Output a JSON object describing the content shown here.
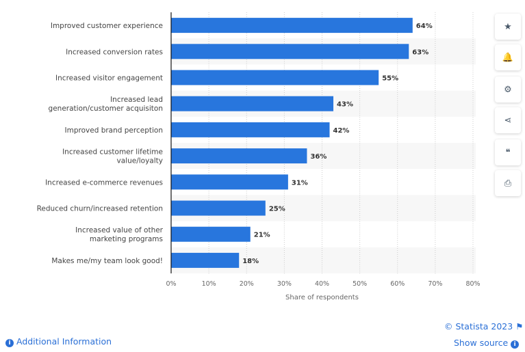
{
  "chart_data": {
    "type": "bar",
    "orientation": "horizontal",
    "categories": [
      "Improved customer experience",
      "Increased conversion rates",
      "Increased visitor engagement",
      "Increased lead generation/customer acquisiton",
      "Improved brand perception",
      "Increased customer lifetime value/loyalty",
      "Increased e-commerce revenues",
      "Reduced churn/increased retention",
      "Increased value of other marketing programs",
      "Makes me/my team look good!"
    ],
    "values": [
      64,
      63,
      55,
      43,
      42,
      36,
      31,
      25,
      21,
      18
    ],
    "data_labels": [
      "64%",
      "63%",
      "55%",
      "43%",
      "42%",
      "36%",
      "31%",
      "25%",
      "21%",
      "18%"
    ],
    "xlabel": "Share of respondents",
    "xlim": [
      0,
      80
    ],
    "xticks": [
      "0%",
      "10%",
      "20%",
      "30%",
      "40%",
      "50%",
      "60%",
      "70%",
      "80%"
    ],
    "bar_color": "#2876dd",
    "grid": true
  },
  "sidebar": [
    {
      "icon": "star-icon",
      "glyph": "★"
    },
    {
      "icon": "bell-icon",
      "glyph": "🔔"
    },
    {
      "icon": "gear-icon",
      "glyph": "⚙"
    },
    {
      "icon": "share-icon",
      "glyph": "⋖"
    },
    {
      "icon": "quote-icon",
      "glyph": "❝"
    },
    {
      "icon": "print-icon",
      "glyph": "⎙"
    }
  ],
  "footer": {
    "copyright": "© Statista 2023",
    "show_source": "Show source",
    "additional_info": "Additional Information"
  }
}
